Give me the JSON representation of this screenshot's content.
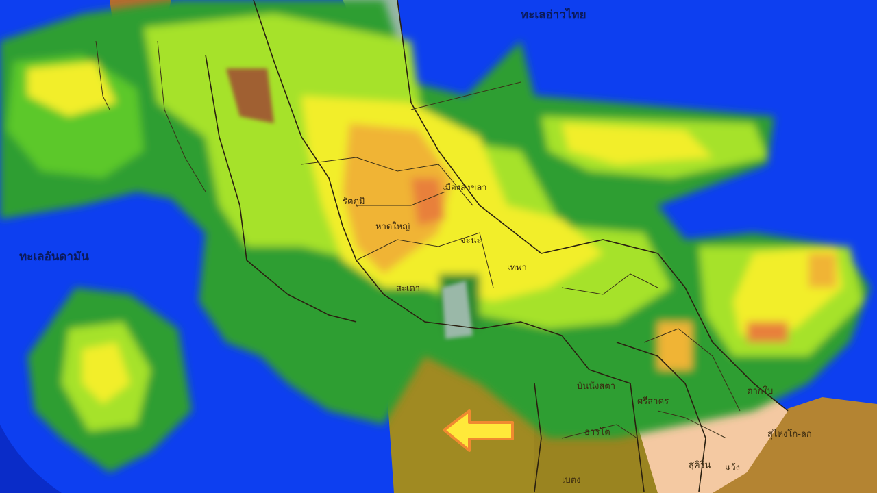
{
  "map": {
    "type": "weather radar rainfall map",
    "colors": {
      "sea": "#0d3ff0",
      "outside_radar": "#0a2cc8",
      "land_olive": "#a08a22",
      "land_tan": "#b48432",
      "land_peach": "#f4c9a2",
      "rain_dark_green": "#2f9e30",
      "rain_green": "#5cc82a",
      "rain_light_green": "#a6e22a",
      "rain_yellow": "#f2ee2a",
      "rain_orange": "#f0b436",
      "rain_red_orange": "#e8803a",
      "arrow_fill": "#ffe93a",
      "arrow_stroke": "#f08a30"
    },
    "sea_labels": {
      "gulf": "ทะเลอ่าวไทย",
      "andaman": "ทะเลอันดามัน"
    },
    "district_labels": [
      "เมืองสงขลา",
      "หาดใหญ่",
      "รัตภูมิ",
      "จะนะ",
      "เทพา",
      "สะเดา",
      "บันนังสตา",
      "ศรีสาคร",
      "ธารโต",
      "เบตง",
      "ตากใบ",
      "สุคิริน",
      "แว้ง",
      "สุไหงโก-ลก"
    ],
    "arrow": {
      "icon": "arrow-left-icon",
      "direction": "left"
    }
  }
}
